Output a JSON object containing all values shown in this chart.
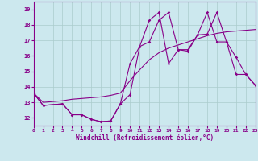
{
  "xlabel": "Windchill (Refroidissement éolien,°C)",
  "background_color": "#cce8ee",
  "grid_color": "#aacccc",
  "line_color": "#880088",
  "xmin": 0,
  "xmax": 23,
  "ymin": 11.5,
  "ymax": 19.5,
  "yticks": [
    12,
    13,
    14,
    15,
    16,
    17,
    18,
    19
  ],
  "xticks": [
    0,
    1,
    2,
    3,
    4,
    5,
    6,
    7,
    8,
    9,
    10,
    11,
    12,
    13,
    14,
    15,
    16,
    17,
    18,
    19,
    20,
    21,
    22,
    23
  ],
  "series1_x": [
    0,
    1,
    3,
    4,
    5,
    6,
    7,
    8,
    9,
    10,
    11,
    12,
    13,
    14,
    15,
    16,
    17,
    18,
    19,
    20,
    21,
    22,
    23
  ],
  "series1_y": [
    13.6,
    12.8,
    12.9,
    12.2,
    12.2,
    11.9,
    11.75,
    11.8,
    12.9,
    13.5,
    16.6,
    18.3,
    18.8,
    15.5,
    16.4,
    16.3,
    17.35,
    18.8,
    16.9,
    16.9,
    14.8,
    14.8,
    14.1
  ],
  "series2_x": [
    0,
    1,
    2,
    3,
    4,
    5,
    6,
    7,
    8,
    9,
    10,
    11,
    12,
    13,
    14,
    15,
    16,
    17,
    18,
    19,
    20,
    21,
    22,
    23
  ],
  "series2_y": [
    13.6,
    13.0,
    13.05,
    13.1,
    13.2,
    13.25,
    13.3,
    13.35,
    13.45,
    13.6,
    14.4,
    15.1,
    15.75,
    16.2,
    16.5,
    16.7,
    16.9,
    17.1,
    17.3,
    17.45,
    17.55,
    17.6,
    17.65,
    17.7
  ],
  "series3_x": [
    0,
    1,
    3,
    4,
    5,
    6,
    7,
    8,
    9,
    10,
    11,
    12,
    13,
    14,
    15,
    16,
    17,
    18,
    19,
    20,
    21,
    22,
    23
  ],
  "series3_y": [
    13.6,
    12.8,
    12.9,
    12.2,
    12.2,
    11.9,
    11.75,
    11.8,
    12.9,
    15.5,
    16.6,
    16.9,
    18.3,
    18.8,
    16.4,
    16.4,
    17.35,
    17.4,
    18.8,
    16.9,
    15.9,
    14.8,
    14.1
  ]
}
